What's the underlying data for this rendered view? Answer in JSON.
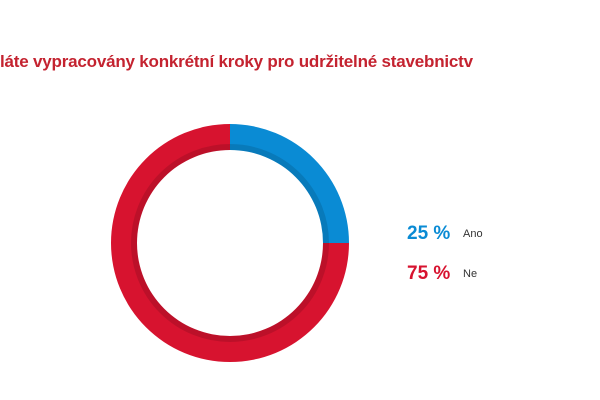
{
  "chart_data": {
    "type": "pie",
    "donut": true,
    "title": "láte vypracovány konkrétní kroky pro udržitelné stavebnictv",
    "legend_placement": "right",
    "slices": [
      {
        "label": "Ano",
        "value": 25,
        "display": "25 %",
        "color": "#0a8bd4"
      },
      {
        "label": "Ne",
        "value": 75,
        "display": "75 %",
        "color": "#d7132f"
      }
    ]
  }
}
